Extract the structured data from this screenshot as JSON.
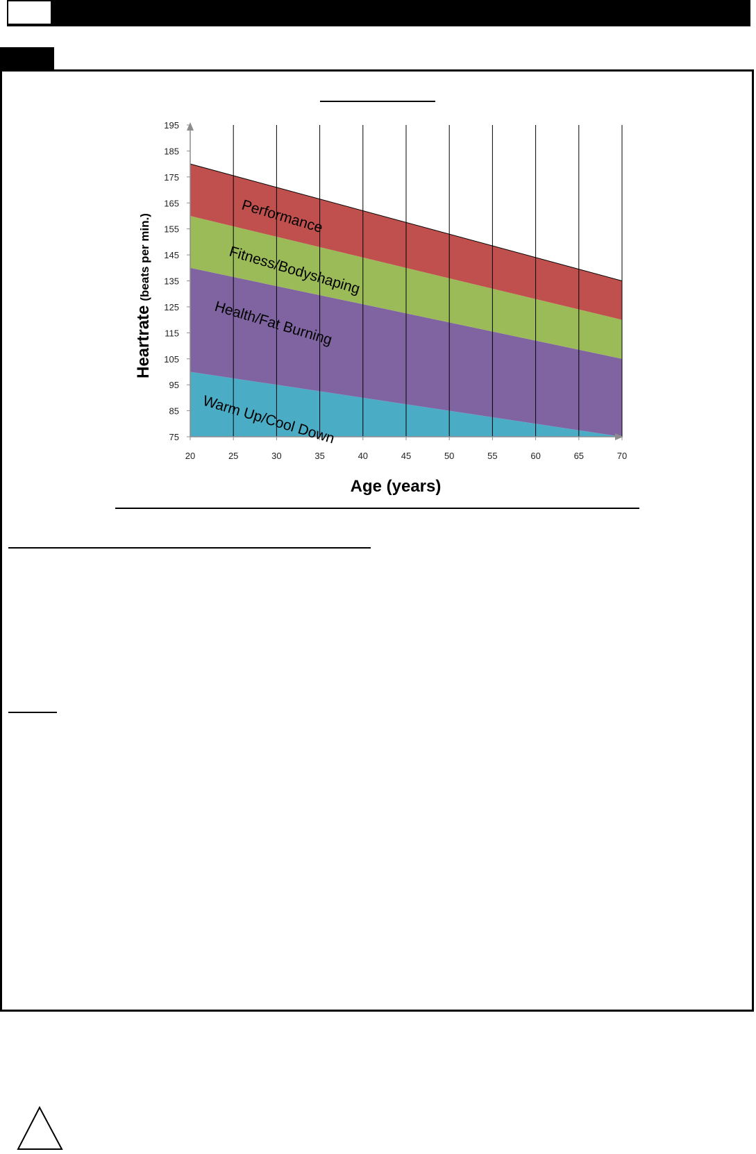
{
  "chart_data": {
    "type": "area",
    "xlabel": "Age (years)",
    "ylabel": "Heartrate",
    "ylabel_suffix": "(beats per min.)",
    "xlim": [
      20,
      70
    ],
    "ylim": [
      75,
      195
    ],
    "x_ticks": [
      20,
      25,
      30,
      35,
      40,
      45,
      50,
      55,
      60,
      65,
      70
    ],
    "y_ticks": [
      75,
      85,
      95,
      105,
      115,
      125,
      135,
      145,
      155,
      165,
      175,
      185,
      195
    ],
    "vertical_grid": true,
    "x": [
      20,
      70
    ],
    "series": [
      {
        "name": "Warm Up/Cool Down",
        "lower": [
          75,
          75
        ],
        "upper": [
          100,
          75
        ],
        "color": "#4BACC6"
      },
      {
        "name": "Health/Fat Burning",
        "lower": [
          100,
          75
        ],
        "upper": [
          140,
          105
        ],
        "color": "#8064A2"
      },
      {
        "name": "Fitness/Bodyshaping",
        "lower": [
          140,
          105
        ],
        "upper": [
          160,
          120
        ],
        "color": "#9BBB59"
      },
      {
        "name": "Performance",
        "lower": [
          160,
          120
        ],
        "upper": [
          180,
          135
        ],
        "color": "#C0504D"
      }
    ]
  }
}
